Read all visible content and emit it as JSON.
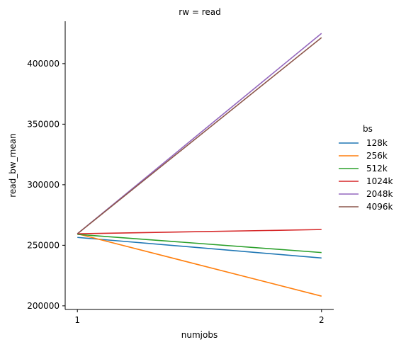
{
  "chart_data": {
    "type": "line",
    "title": "rw = read",
    "xlabel": "numjobs",
    "ylabel": "read_bw_mean",
    "x": [
      1,
      2
    ],
    "x_ticks": [
      "1",
      "2"
    ],
    "y_ticks": [
      "200000",
      "250000",
      "300000",
      "350000",
      "400000"
    ],
    "y_tick_values": [
      200000,
      250000,
      300000,
      350000,
      400000
    ],
    "xlim": [
      0.95,
      2.05
    ],
    "ylim": [
      197000,
      435000
    ],
    "grid": false,
    "legend": {
      "title": "bs",
      "placement": "right"
    },
    "series": [
      {
        "name": "128k",
        "color": "#1f77b4",
        "values": [
          256500,
          239500
        ]
      },
      {
        "name": "256k",
        "color": "#ff7f0e",
        "values": [
          259500,
          208000
        ]
      },
      {
        "name": "512k",
        "color": "#2ca02c",
        "values": [
          259000,
          244000
        ]
      },
      {
        "name": "1024k",
        "color": "#d62728",
        "values": [
          259500,
          263000
        ]
      },
      {
        "name": "2048k",
        "color": "#9467bd",
        "values": [
          259500,
          425000
        ]
      },
      {
        "name": "4096k",
        "color": "#8c564b",
        "values": [
          259500,
          421500
        ]
      }
    ]
  }
}
